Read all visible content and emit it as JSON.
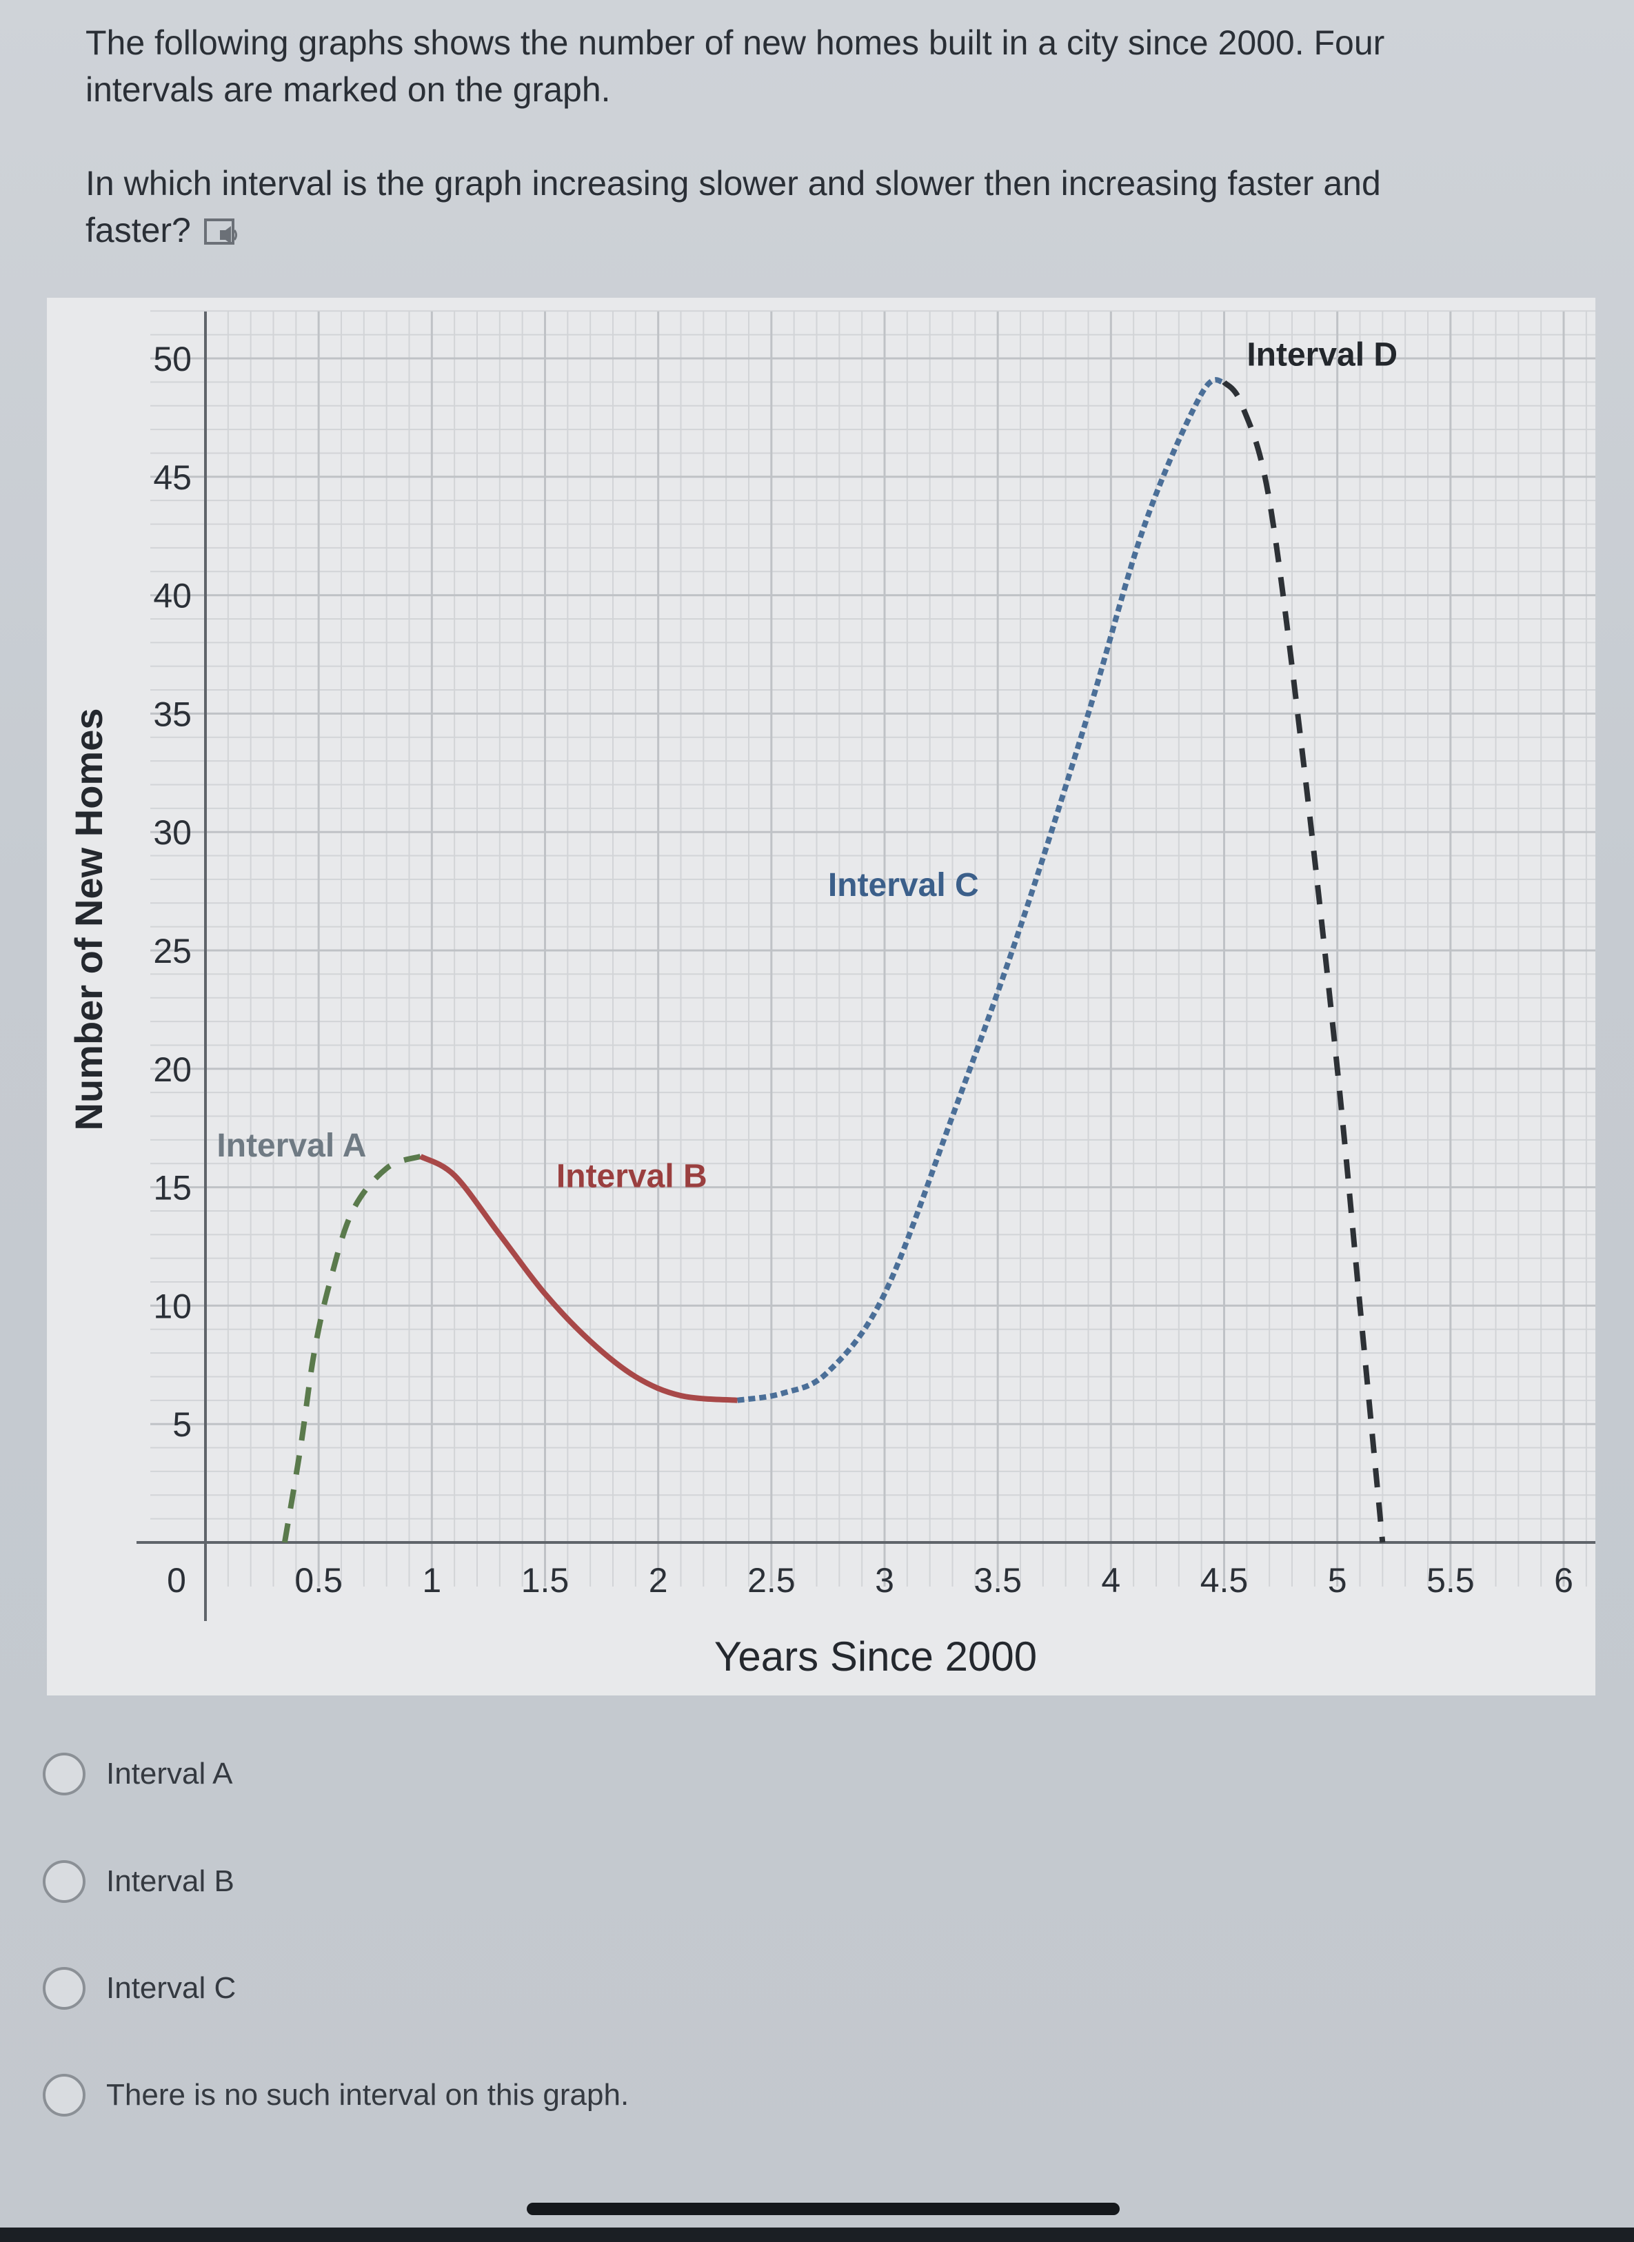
{
  "question": {
    "intro": "The following graphs shows the number of new homes built in a city since 2000. Four intervals are marked on the graph.",
    "prompt": "In which interval is the graph increasing slower and slower then increasing faster and faster?"
  },
  "icons": {
    "audio": "speaker-icon"
  },
  "chart_data": {
    "type": "line",
    "xlabel": "Years Since 2000",
    "ylabel": "Number of New Homes",
    "xlim": [
      0,
      6
    ],
    "ylim": [
      0,
      50
    ],
    "x_ticks": [
      "0",
      "0.5",
      "1",
      "1.5",
      "2",
      "2.5",
      "3",
      "3.5",
      "4",
      "4.5",
      "5",
      "5.5",
      "6"
    ],
    "y_ticks": [
      "50",
      "45",
      "40",
      "35",
      "30",
      "25",
      "20",
      "15",
      "10",
      "5"
    ],
    "grid": true,
    "series": [
      {
        "name": "Interval A",
        "style": "dashed",
        "color": "#5a7a4c",
        "points": [
          [
            0.35,
            0
          ],
          [
            0.42,
            4
          ],
          [
            0.48,
            8
          ],
          [
            0.55,
            11
          ],
          [
            0.65,
            14
          ],
          [
            0.8,
            15.8
          ],
          [
            0.95,
            16.3
          ]
        ]
      },
      {
        "name": "Interval B",
        "style": "solid",
        "color": "#a84848",
        "points": [
          [
            0.95,
            16.3
          ],
          [
            1.1,
            15.5
          ],
          [
            1.3,
            13
          ],
          [
            1.5,
            10.5
          ],
          [
            1.7,
            8.5
          ],
          [
            1.9,
            7
          ],
          [
            2.1,
            6.2
          ],
          [
            2.35,
            6
          ]
        ]
      },
      {
        "name": "Interval C",
        "style": "dotted",
        "color": "#4b6f98",
        "points": [
          [
            2.35,
            6
          ],
          [
            2.55,
            6.3
          ],
          [
            2.75,
            7.2
          ],
          [
            3.0,
            10.5
          ],
          [
            3.3,
            18
          ],
          [
            3.6,
            26
          ],
          [
            3.9,
            35
          ],
          [
            4.15,
            43
          ],
          [
            4.4,
            48.5
          ],
          [
            4.5,
            49
          ]
        ]
      },
      {
        "name": "Interval D",
        "style": "dashed",
        "color": "#2d3136",
        "points": [
          [
            4.5,
            49
          ],
          [
            4.58,
            48
          ],
          [
            4.7,
            44
          ],
          [
            4.85,
            33
          ],
          [
            5.0,
            20
          ],
          [
            5.1,
            10
          ],
          [
            5.17,
            3
          ],
          [
            5.2,
            0
          ]
        ]
      }
    ],
    "annotations": [
      {
        "text": "Interval A",
        "x": 0.05,
        "y": 16.3
      },
      {
        "text": "Interval B",
        "x": 1.55,
        "y": 15
      },
      {
        "text": "Interval C",
        "x": 2.75,
        "y": 27.3
      },
      {
        "text": "Interval D",
        "x": 4.6,
        "y": 49.7
      }
    ]
  },
  "choices": [
    {
      "label": "Interval A"
    },
    {
      "label": "Interval B"
    },
    {
      "label": "Interval C"
    },
    {
      "label": "There is no such interval on this graph."
    }
  ]
}
